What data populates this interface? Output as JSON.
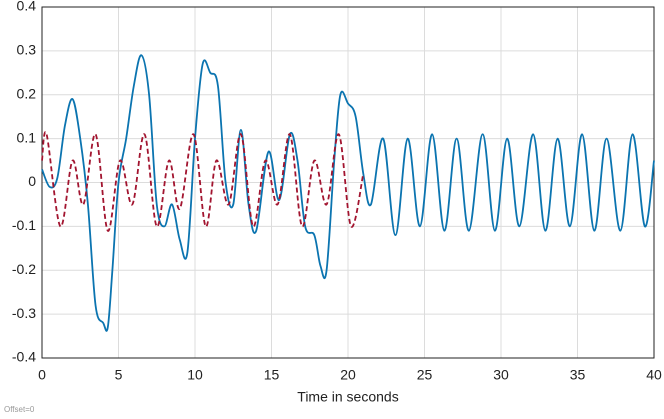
{
  "chart_data": {
    "type": "line",
    "xlabel": "Time in seconds",
    "note": "Offset=0",
    "xlim": [
      0,
      40
    ],
    "ylim": [
      -0.4,
      0.4
    ],
    "xticks": [
      0,
      5,
      10,
      15,
      20,
      25,
      30,
      35,
      40
    ],
    "yticks": [
      -0.4,
      -0.3,
      -0.2,
      -0.1,
      0,
      0.1,
      0.2,
      0.3,
      0.4
    ],
    "grid": true,
    "series": [
      {
        "color": "#0b74b0",
        "dash": false,
        "x": [
          0,
          0.5,
          1,
          1.5,
          2,
          2.5,
          3,
          3.5,
          4,
          4.3,
          4.6,
          5,
          5.5,
          6,
          6.5,
          7,
          7.5,
          8,
          8.5,
          9,
          9.5,
          10,
          10.5,
          11,
          11.5,
          12,
          12.5,
          13,
          13.5,
          14,
          14.8,
          15.5,
          16.2,
          16.7,
          17.2,
          17.8,
          18.2,
          18.6,
          19.1,
          19.5,
          20,
          20.5,
          21,
          21.5,
          22.3,
          23.1,
          23.9,
          24.7,
          25.5,
          26.3,
          27.1,
          27.9,
          28.8,
          29.6,
          30.4,
          31.2,
          32.1,
          32.9,
          33.7,
          34.5,
          35.3,
          36.1,
          36.9,
          37.8,
          38.6,
          39.4,
          40
        ],
        "values": [
          0.03,
          -0.01,
          0.01,
          0.13,
          0.19,
          0.1,
          -0.05,
          -0.28,
          -0.32,
          -0.33,
          -0.2,
          0.0,
          0.1,
          0.22,
          0.29,
          0.2,
          -0.05,
          -0.1,
          -0.05,
          -0.13,
          -0.16,
          0.1,
          0.27,
          0.25,
          0.22,
          0.0,
          -0.05,
          0.12,
          -0.05,
          -0.11,
          0.07,
          -0.04,
          0.11,
          0.05,
          -0.1,
          -0.12,
          -0.19,
          -0.2,
          0.05,
          0.2,
          0.18,
          0.15,
          0.02,
          -0.05,
          0.1,
          -0.12,
          0.1,
          -0.1,
          0.11,
          -0.11,
          0.1,
          -0.11,
          0.11,
          -0.11,
          0.1,
          -0.1,
          0.11,
          -0.11,
          0.1,
          -0.1,
          0.11,
          -0.11,
          0.1,
          -0.11,
          0.11,
          -0.1,
          0.05
        ]
      },
      {
        "color": "#a2142f",
        "dash": true,
        "x": [
          0,
          0.3,
          1.2,
          2.0,
          2.7,
          3.5,
          4.3,
          5.1,
          5.9,
          6.7,
          7.5,
          8.3,
          9.0,
          9.9,
          10.7,
          11.4,
          12.2,
          13.0,
          13.8,
          14.6,
          15.4,
          16.2,
          17.0,
          17.8,
          18.6,
          19.4,
          20.2,
          21.0
        ],
        "values": [
          0.05,
          0.11,
          -0.1,
          0.05,
          -0.05,
          0.11,
          -0.11,
          0.05,
          -0.05,
          0.11,
          -0.1,
          0.05,
          -0.06,
          0.11,
          -0.1,
          0.05,
          -0.05,
          0.11,
          -0.1,
          0.05,
          -0.05,
          0.11,
          -0.1,
          0.05,
          -0.05,
          0.11,
          -0.1,
          0.02
        ]
      }
    ]
  }
}
